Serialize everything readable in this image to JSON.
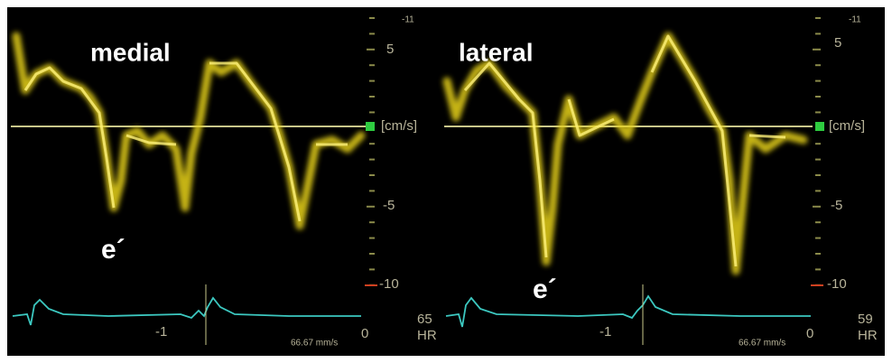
{
  "panels": [
    {
      "label": "medial",
      "wave_label": "e´",
      "scale_top": "-11",
      "scale_5": "5",
      "unit": "[cm/s]",
      "scale_m5": "-5",
      "scale_m10": "-10",
      "time_m1": "-1",
      "time_0": "0",
      "sweep": "66.67 mm/s",
      "hr_value": "65",
      "hr_label": "HR"
    },
    {
      "label": "lateral",
      "wave_label": "e´",
      "scale_top": "-11",
      "scale_5": "5",
      "unit": "[cm/s]",
      "scale_m5": "-5",
      "scale_m10": "-10",
      "time_m1": "-1",
      "time_0": "0",
      "sweep": "66.67 mm/s",
      "hr_value": "59",
      "hr_label": "HR"
    }
  ]
}
